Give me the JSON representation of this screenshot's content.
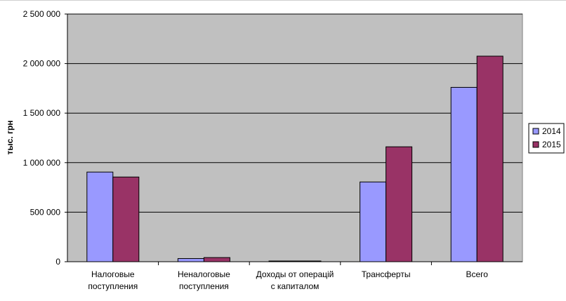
{
  "chart_data": {
    "type": "bar",
    "ylabel": "тыс. грн",
    "ylim": [
      0,
      2500000
    ],
    "yticks": [
      0,
      500000,
      1000000,
      1500000,
      2000000,
      2500000
    ],
    "ytick_labels": [
      "0",
      "500 000",
      "1 000 000",
      "1 500 000",
      "2 000 000",
      "2 500 000"
    ],
    "categories": [
      [
        "Налоговые",
        "поступления"
      ],
      [
        "Неналоговые",
        "поступления"
      ],
      [
        "Доходы от операцій",
        "с капиталом"
      ],
      [
        "Трансферты"
      ],
      [
        "Всего"
      ]
    ],
    "series": [
      {
        "name": "2014",
        "color": "#9999ff",
        "values": [
          905000,
          32000,
          2000,
          805000,
          1760000
        ]
      },
      {
        "name": "2015",
        "color": "#993366",
        "values": [
          855000,
          42000,
          3000,
          1160000,
          2075000
        ]
      }
    ],
    "plot_background": "#c0c0c0",
    "grid": true,
    "legend": "right"
  }
}
